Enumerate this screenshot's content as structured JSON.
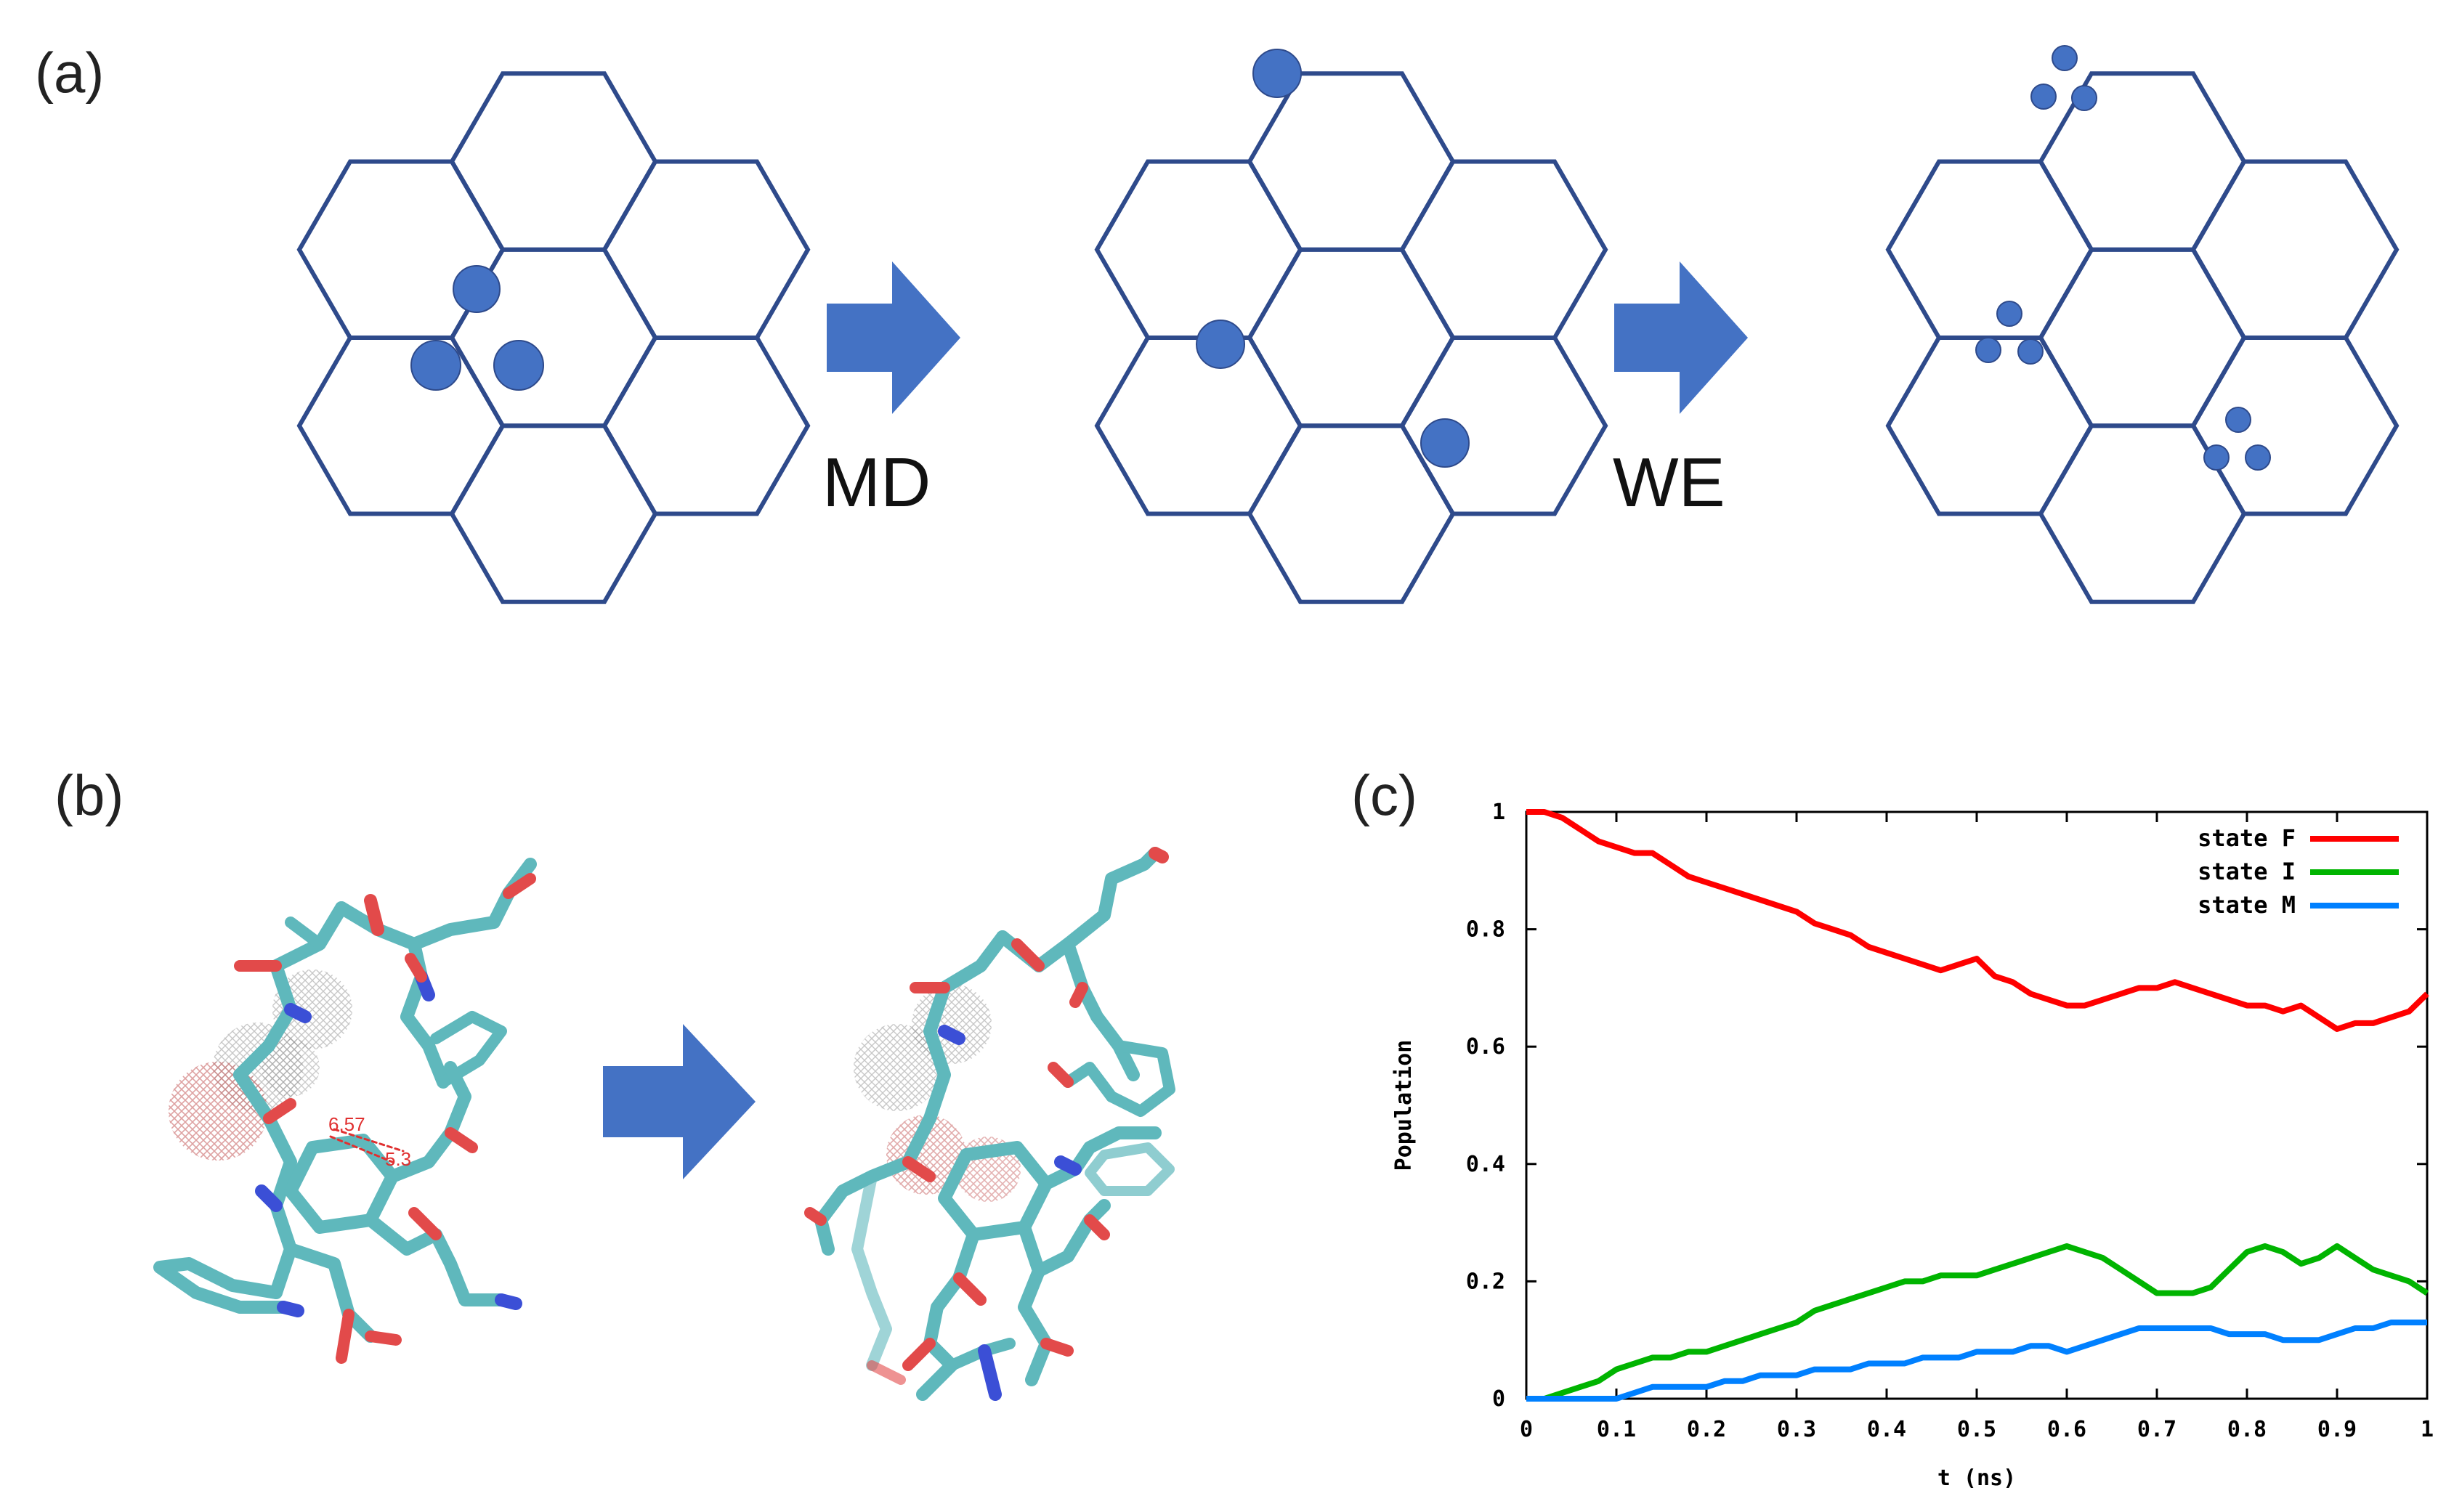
{
  "panels": {
    "a": "(a)",
    "b": "(b)",
    "c": "(c)"
  },
  "schematic": {
    "steps": [
      "MD",
      "WE"
    ],
    "colors": {
      "hex_stroke": "#2E4A8B",
      "walker_fill": "#4472C4",
      "arrow_fill": "#4472C4"
    }
  },
  "molecule": {
    "distance_labels": [
      "6.57",
      "5.3"
    ],
    "colors": {
      "carbon": "#5FB8BC",
      "oxygen": "#E24A4A",
      "nitrogen": "#3B4FD6",
      "label": "#E03030"
    }
  },
  "chart_data": {
    "type": "line",
    "xlabel": "t (ns)",
    "ylabel": "Population",
    "xlim": [
      0,
      1
    ],
    "ylim": [
      0,
      1
    ],
    "xticks": [
      "0",
      "0.1",
      "0.2",
      "0.3",
      "0.4",
      "0.5",
      "0.6",
      "0.7",
      "0.8",
      "0.9",
      "1"
    ],
    "yticks": [
      "0",
      "0.2",
      "0.4",
      "0.6",
      "0.8",
      "1"
    ],
    "grid": false,
    "legend_position": "top-right",
    "x": [
      0,
      0.02,
      0.04,
      0.06,
      0.08,
      0.1,
      0.12,
      0.14,
      0.16,
      0.18,
      0.2,
      0.22,
      0.24,
      0.26,
      0.28,
      0.3,
      0.32,
      0.34,
      0.36,
      0.38,
      0.4,
      0.42,
      0.44,
      0.46,
      0.48,
      0.5,
      0.52,
      0.54,
      0.56,
      0.58,
      0.6,
      0.62,
      0.64,
      0.66,
      0.68,
      0.7,
      0.72,
      0.74,
      0.76,
      0.78,
      0.8,
      0.82,
      0.84,
      0.86,
      0.88,
      0.9,
      0.92,
      0.94,
      0.96,
      0.98,
      1.0
    ],
    "series": [
      {
        "name": "state F",
        "color": "#FF0000",
        "values": [
          1.0,
          1.0,
          0.99,
          0.97,
          0.95,
          0.94,
          0.93,
          0.93,
          0.91,
          0.89,
          0.88,
          0.87,
          0.86,
          0.85,
          0.84,
          0.83,
          0.81,
          0.8,
          0.79,
          0.77,
          0.76,
          0.75,
          0.74,
          0.73,
          0.74,
          0.75,
          0.72,
          0.71,
          0.69,
          0.68,
          0.67,
          0.67,
          0.68,
          0.69,
          0.7,
          0.7,
          0.71,
          0.7,
          0.69,
          0.68,
          0.67,
          0.67,
          0.66,
          0.67,
          0.65,
          0.63,
          0.64,
          0.64,
          0.65,
          0.66,
          0.69
        ]
      },
      {
        "name": "state I",
        "color": "#00B400",
        "values": [
          0,
          0,
          0.01,
          0.02,
          0.03,
          0.05,
          0.06,
          0.07,
          0.07,
          0.08,
          0.08,
          0.09,
          0.1,
          0.11,
          0.12,
          0.13,
          0.15,
          0.16,
          0.17,
          0.18,
          0.19,
          0.2,
          0.2,
          0.21,
          0.21,
          0.21,
          0.22,
          0.23,
          0.24,
          0.25,
          0.26,
          0.25,
          0.24,
          0.22,
          0.2,
          0.18,
          0.18,
          0.18,
          0.19,
          0.22,
          0.25,
          0.26,
          0.25,
          0.23,
          0.24,
          0.26,
          0.24,
          0.22,
          0.21,
          0.2,
          0.18
        ]
      },
      {
        "name": "state M",
        "color": "#0080FF",
        "values": [
          0,
          0,
          0,
          0,
          0,
          0,
          0.01,
          0.02,
          0.02,
          0.02,
          0.02,
          0.03,
          0.03,
          0.04,
          0.04,
          0.04,
          0.05,
          0.05,
          0.05,
          0.06,
          0.06,
          0.06,
          0.07,
          0.07,
          0.07,
          0.08,
          0.08,
          0.08,
          0.09,
          0.09,
          0.08,
          0.09,
          0.1,
          0.11,
          0.12,
          0.12,
          0.12,
          0.12,
          0.12,
          0.11,
          0.11,
          0.11,
          0.1,
          0.1,
          0.1,
          0.11,
          0.12,
          0.12,
          0.13,
          0.13,
          0.13
        ]
      }
    ]
  }
}
